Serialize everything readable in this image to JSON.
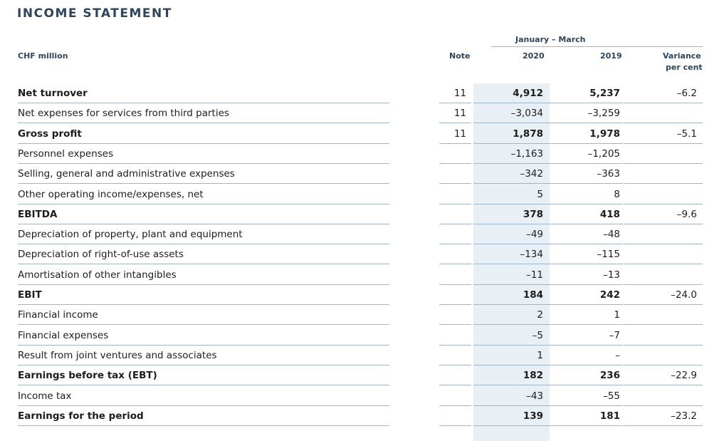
{
  "title": "INCOME STATEMENT",
  "header": {
    "unit": "CHF million",
    "note": "Note",
    "period": "January – March",
    "year_current": "2020",
    "year_prior": "2019",
    "variance_line1": "Variance",
    "variance_line2": "per cent"
  },
  "rows": [
    {
      "label": "Net turnover",
      "note": "11",
      "v2020": "4,912",
      "v2019": "5,237",
      "variance": "–6.2",
      "bold": true
    },
    {
      "label": "Net expenses for services from third parties",
      "note": "11",
      "v2020": "–3,034",
      "v2019": "–3,259",
      "variance": "",
      "bold": false
    },
    {
      "label": "Gross profit",
      "note": "11",
      "v2020": "1,878",
      "v2019": "1,978",
      "variance": "–5.1",
      "bold": true
    },
    {
      "label": "Personnel expenses",
      "note": "",
      "v2020": "–1,163",
      "v2019": "–1,205",
      "variance": "",
      "bold": false
    },
    {
      "label": "Selling, general and administrative expenses",
      "note": "",
      "v2020": "–342",
      "v2019": "–363",
      "variance": "",
      "bold": false
    },
    {
      "label": "Other operating income/expenses, net",
      "note": "",
      "v2020": "5",
      "v2019": "8",
      "variance": "",
      "bold": false
    },
    {
      "label": "EBITDA",
      "note": "",
      "v2020": "378",
      "v2019": "418",
      "variance": "–9.6",
      "bold": true
    },
    {
      "label": "Depreciation of property, plant and equipment",
      "note": "",
      "v2020": "–49",
      "v2019": "–48",
      "variance": "",
      "bold": false
    },
    {
      "label": "Depreciation of right-of-use assets",
      "note": "",
      "v2020": "–134",
      "v2019": "–115",
      "variance": "",
      "bold": false
    },
    {
      "label": "Amortisation of other intangibles",
      "note": "",
      "v2020": "–11",
      "v2019": "–13",
      "variance": "",
      "bold": false
    },
    {
      "label": "EBIT",
      "note": "",
      "v2020": "184",
      "v2019": "242",
      "variance": "–24.0",
      "bold": true
    },
    {
      "label": "Financial income",
      "note": "",
      "v2020": "2",
      "v2019": "1",
      "variance": "",
      "bold": false
    },
    {
      "label": "Financial expenses",
      "note": "",
      "v2020": "–5",
      "v2019": "–7",
      "variance": "",
      "bold": false
    },
    {
      "label": "Result from joint ventures and associates",
      "note": "",
      "v2020": "1",
      "v2019": "–",
      "variance": "",
      "bold": false
    },
    {
      "label": "Earnings before tax (EBT)",
      "note": "",
      "v2020": "182",
      "v2019": "236",
      "variance": "–22.9",
      "bold": true
    },
    {
      "label": "Income tax",
      "note": "",
      "v2020": "–43",
      "v2019": "–55",
      "variance": "",
      "bold": false
    },
    {
      "label": "Earnings for the period",
      "note": "",
      "v2020": "139",
      "v2019": "181",
      "variance": "–23.2",
      "bold": true
    }
  ]
}
